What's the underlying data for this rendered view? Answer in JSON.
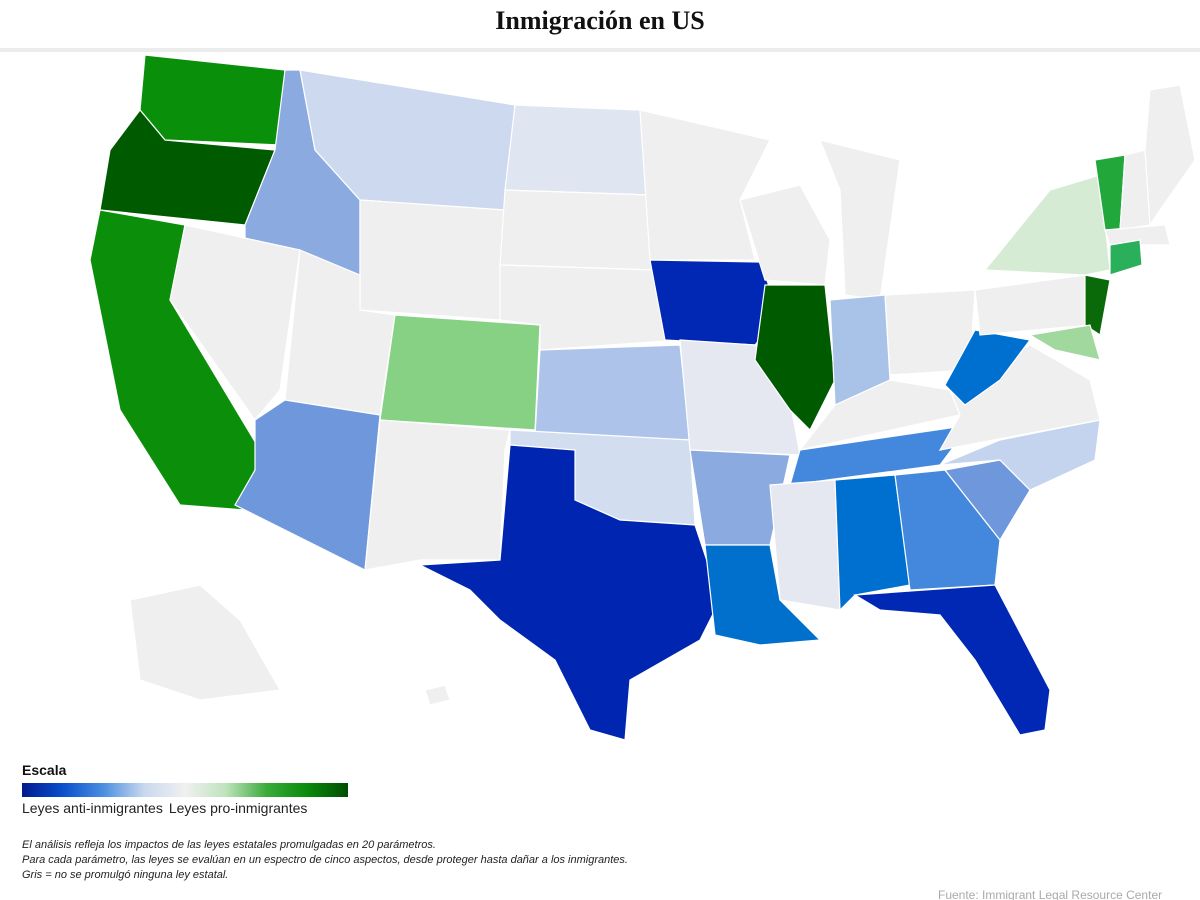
{
  "header": {
    "title": "Inmigración en US"
  },
  "legend": {
    "title": "Escala",
    "labels": [
      "Leyes anti-inmigrantes",
      "Leyes pro-inmigrantes"
    ],
    "colors": [
      "#001a8f",
      "#0a4fcc",
      "#4a8fe0",
      "#c9d8ef",
      "#f0f0f0",
      "#bfe3bd",
      "#3aab3a",
      "#0a8a0a",
      "#004d00"
    ]
  },
  "notes": [
    "El análisis refleja los impactos de las leyes estatales promulgadas en 20 parámetros.",
    "Para cada parámetro, las leyes se evalúan en un espectro de cinco aspectos, desde proteger hasta dañar a los inmigrantes.",
    "Gris = no se promulgó ninguna ley estatal."
  ],
  "source": "Fuente: Immigrant Legal Resource Center",
  "state_colors": [
    "#0a8f0a",
    "#005a00",
    "#0b8f0b",
    "#8aaae0",
    "#efefef",
    "#ccd9ee",
    "#efefef",
    "#efefef",
    "#86d183",
    "#6f98dc",
    "#efefef",
    "#e0e6f1",
    "#efefef",
    "#efefef",
    "#adc3ea",
    "#d2ddef",
    "#0025b0",
    "#efefef",
    "#0028b4",
    "#e5e8f0",
    "#8aaae0",
    "#0070cc",
    "#efefef",
    "#005a00",
    "#efefef",
    "#a8c2e8",
    "#efefef",
    "#efefef",
    "#4488dd",
    "#e5e8f0",
    "#0070d0",
    "#4488dd",
    "#0028b4",
    "#6f98dc",
    "#c4d3ee",
    "#efefef",
    "#0070d0",
    "#efefef",
    "#d5ebd3",
    "#0a6a0a",
    "#a0d89e",
    "#22a83a",
    "#efefef",
    "#efefef",
    "#efefef",
    "#2aaf5a",
    "#efefef",
    "#efefef"
  ]
}
